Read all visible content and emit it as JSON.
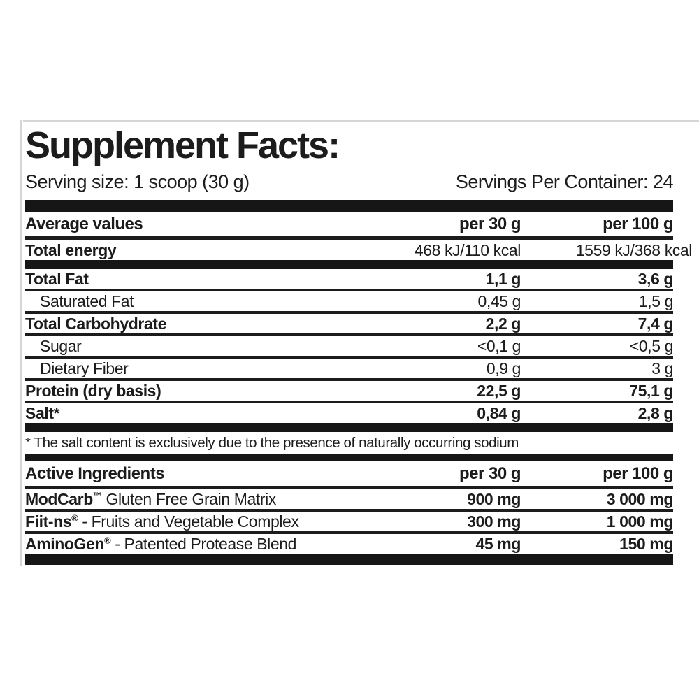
{
  "label": {
    "title": "Supplement Facts:",
    "serving_size": "Serving size: 1 scoop (30 g)",
    "servings_per_container": "Servings Per Container: 24",
    "colors": {
      "bar": "#161616",
      "text": "#1c1c1c",
      "hairline": "#d6d6d6",
      "background": "#ffffff"
    },
    "main_table": {
      "headers": {
        "col_label": "Average values",
        "col_per_30g": "per 30 g",
        "col_per_100g": "per 100 g"
      },
      "energy_row": {
        "label": "Total energy",
        "per_30g": "468 kJ/110 kcal",
        "per_100g": "1559 kJ/368 kcal"
      },
      "rows": [
        {
          "label": "Total Fat",
          "per_30g": "1,1 g",
          "per_100g": "3,6 g",
          "bold": true,
          "indent": false
        },
        {
          "label": "Saturated Fat",
          "per_30g": "0,45 g",
          "per_100g": "1,5 g",
          "bold": false,
          "indent": true
        },
        {
          "label": "Total Carbohydrate",
          "per_30g": "2,2 g",
          "per_100g": "7,4 g",
          "bold": true,
          "indent": false
        },
        {
          "label": "Sugar",
          "per_30g": "<0,1 g",
          "per_100g": "<0,5 g",
          "bold": false,
          "indent": true
        },
        {
          "label": "Dietary Fiber",
          "per_30g": "0,9 g",
          "per_100g": "3 g",
          "bold": false,
          "indent": true
        },
        {
          "label": "Protein (dry basis)",
          "per_30g": "22,5 g",
          "per_100g": "75,1 g",
          "bold": true,
          "indent": false
        },
        {
          "label": "Salt*",
          "per_30g": "0,84 g",
          "per_100g": "2,8 g",
          "bold": true,
          "indent": false
        }
      ]
    },
    "footnote": "* The salt content is exclusively due to the presence of naturally occurring sodium",
    "active_table": {
      "headers": {
        "col_label": "Active Ingredients",
        "col_per_30g": "per 30 g",
        "col_per_100g": "per 100 g"
      },
      "rows": [
        {
          "name": "ModCarb",
          "mark": "™",
          "description": " Gluten Free Grain Matrix",
          "per_30g": "900 mg",
          "per_100g": "3 000 mg"
        },
        {
          "name": "Fiit-ns",
          "mark": "®",
          "description": " - Fruits and Vegetable Complex",
          "per_30g": "300 mg",
          "per_100g": "1 000 mg"
        },
        {
          "name": "AminoGen",
          "mark": "®",
          "description": " - Patented Protease Blend",
          "per_30g": "45 mg",
          "per_100g": "150 mg"
        }
      ]
    }
  }
}
